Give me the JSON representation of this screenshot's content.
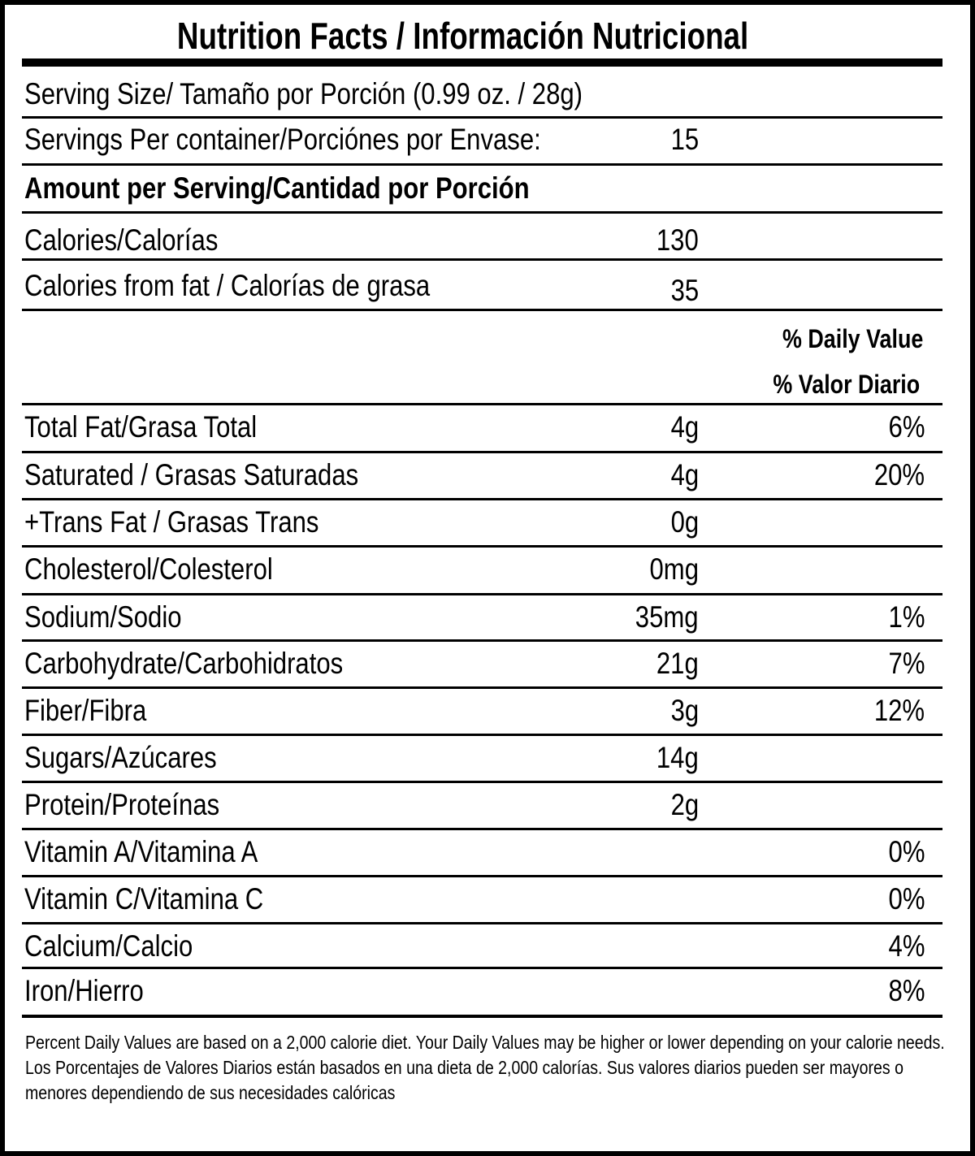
{
  "title": "Nutrition Facts / Información Nutricional",
  "serving_size": "Serving Size/ Tamaño por Porción  (0.99 oz. / 28g)",
  "servings_per_container": {
    "label": "Servings Per container/Porciónes por Envase:",
    "value": "15"
  },
  "amount_header": "Amount per Serving/Cantidad por Porción",
  "calories": {
    "label": "Calories/Calorías",
    "value": "130"
  },
  "calories_from_fat": {
    "label": "Calories from fat / Calorías de grasa",
    "value": "35"
  },
  "daily_value_header": {
    "en": "% Daily Value",
    "es": "% Valor Diario"
  },
  "nutrients": [
    {
      "label": "Total Fat/Grasa Total",
      "amount": "4g",
      "dv": "6%"
    },
    {
      "label": "Saturated / Grasas Saturadas",
      "amount": "4g",
      "dv": "20%"
    },
    {
      "label": "+Trans Fat / Grasas Trans",
      "amount": "0g",
      "dv": ""
    },
    {
      "label": "Cholesterol/Colesterol",
      "amount": "0mg",
      "dv": ""
    },
    {
      "label": "Sodium/Sodio",
      "amount": "35mg",
      "dv": "1%"
    },
    {
      "label": "Carbohydrate/Carbohidratos",
      "amount": "21g",
      "dv": "7%"
    },
    {
      "label": "Fiber/Fibra",
      "amount": "3g",
      "dv": "12%"
    },
    {
      "label": "Sugars/Azúcares",
      "amount": "14g",
      "dv": ""
    },
    {
      "label": "Protein/Proteínas",
      "amount": "2g",
      "dv": ""
    },
    {
      "label": "Vitamin A/Vitamina A",
      "amount": "",
      "dv": "0%"
    },
    {
      "label": "Vitamin C/Vitamina C",
      "amount": "",
      "dv": "0%"
    },
    {
      "label": "Calcium/Calcio",
      "amount": "",
      "dv": "4%"
    },
    {
      "label": "Iron/Hierro",
      "amount": "",
      "dv": "8%"
    }
  ],
  "footnote": {
    "en": "Percent Daily Values are based on a 2,000 calorie diet. Your Daily Values may be higher or lower depending on your calorie needs.",
    "es": "Los Porcentajes de Valores Diarios están basados en una dieta de 2,000 calorías. Sus valores diarios pueden ser mayores o menores dependiendo de sus necesidades calóricas"
  }
}
